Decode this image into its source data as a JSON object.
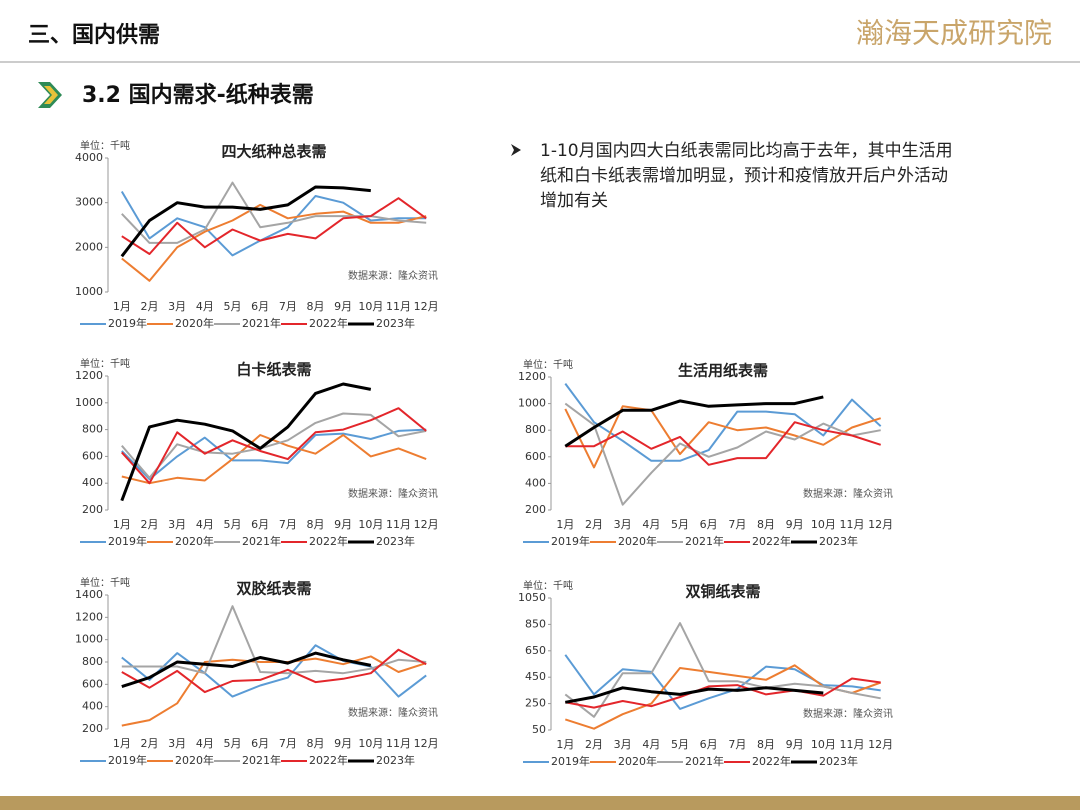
{
  "header": {
    "section": "三、国内供需",
    "logo": "瀚海天成研究院",
    "subtitle": "3.2 国内需求-纸种表需",
    "bullet": [
      "1-10月国内四大白纸表需同比均高于去年，其中生活用",
      "纸和白卡纸表需增加明显，预计和疫情放开后户外活动",
      "增加有关"
    ]
  },
  "chart_data": [
    {
      "type": "line",
      "title": "四大纸种总表需",
      "unit_label": "单位：千吨",
      "source": "数据来源：隆众资讯",
      "categories": [
        "1月",
        "2月",
        "3月",
        "4月",
        "5月",
        "6月",
        "7月",
        "8月",
        "9月",
        "10月",
        "11月",
        "12月"
      ],
      "ylim": [
        1000,
        4000
      ],
      "yticks": [
        1000,
        2000,
        3000,
        4000
      ],
      "series": [
        {
          "name": "2019年",
          "color": "#5b9bd5",
          "values": [
            3250,
            2200,
            2650,
            2450,
            1820,
            2150,
            2450,
            3150,
            3000,
            2600,
            2650,
            2650
          ]
        },
        {
          "name": "2020年",
          "color": "#ed7d31",
          "values": [
            1750,
            1250,
            2000,
            2350,
            2600,
            2950,
            2650,
            2750,
            2800,
            2550,
            2550,
            2700
          ]
        },
        {
          "name": "2021年",
          "color": "#a5a5a5",
          "values": [
            2750,
            2100,
            2100,
            2400,
            3450,
            2450,
            2550,
            2700,
            2700,
            2700,
            2600,
            2550
          ]
        },
        {
          "name": "2022年",
          "color": "#e3262b",
          "values": [
            2250,
            1850,
            2550,
            2000,
            2400,
            2150,
            2300,
            2200,
            2650,
            2700,
            3100,
            2650
          ]
        },
        {
          "name": "2023年",
          "color": "#000000",
          "values": [
            1800,
            2600,
            3000,
            2900,
            2900,
            2850,
            2950,
            3350,
            3330,
            3270,
            null,
            null
          ]
        }
      ]
    },
    {
      "type": "line",
      "title": "白卡纸表需",
      "unit_label": "单位：千吨",
      "source": "数据来源：隆众资讯",
      "categories": [
        "1月",
        "2月",
        "3月",
        "4月",
        "5月",
        "6月",
        "7月",
        "8月",
        "9月",
        "10月",
        "11月",
        "12月"
      ],
      "ylim": [
        200,
        1200
      ],
      "yticks": [
        200,
        400,
        600,
        800,
        1000,
        1200
      ],
      "series": [
        {
          "name": "2019年",
          "color": "#5b9bd5",
          "values": [
            640,
            430,
            600,
            740,
            570,
            570,
            550,
            760,
            770,
            730,
            790,
            800
          ]
        },
        {
          "name": "2020年",
          "color": "#ed7d31",
          "values": [
            450,
            400,
            440,
            420,
            580,
            760,
            680,
            620,
            760,
            600,
            660,
            580
          ]
        },
        {
          "name": "2021年",
          "color": "#a5a5a5",
          "values": [
            680,
            440,
            690,
            630,
            620,
            660,
            720,
            850,
            920,
            910,
            750,
            790
          ]
        },
        {
          "name": "2022年",
          "color": "#e3262b",
          "values": [
            630,
            400,
            780,
            620,
            720,
            640,
            580,
            780,
            800,
            870,
            960,
            790
          ]
        },
        {
          "name": "2023年",
          "color": "#000000",
          "values": [
            270,
            820,
            870,
            840,
            790,
            660,
            820,
            1070,
            1140,
            1100,
            null,
            null
          ]
        }
      ]
    },
    {
      "type": "line",
      "title": "生活用纸表需",
      "unit_label": "单位：千吨",
      "source": "数据来源：隆众资讯",
      "categories": [
        "1月",
        "2月",
        "3月",
        "4月",
        "5月",
        "6月",
        "7月",
        "8月",
        "9月",
        "10月",
        "11月",
        "12月"
      ],
      "ylim": [
        200,
        1200
      ],
      "yticks": [
        200,
        400,
        600,
        800,
        1000,
        1200
      ],
      "series": [
        {
          "name": "2019年",
          "color": "#5b9bd5",
          "values": [
            1150,
            860,
            720,
            570,
            570,
            650,
            940,
            940,
            920,
            760,
            1030,
            830
          ]
        },
        {
          "name": "2020年",
          "color": "#ed7d31",
          "values": [
            960,
            520,
            980,
            950,
            620,
            860,
            800,
            820,
            760,
            690,
            820,
            890
          ]
        },
        {
          "name": "2021年",
          "color": "#a5a5a5",
          "values": [
            1000,
            840,
            240,
            480,
            700,
            600,
            670,
            790,
            730,
            850,
            760,
            800
          ]
        },
        {
          "name": "2022年",
          "color": "#e3262b",
          "values": [
            680,
            680,
            790,
            660,
            750,
            540,
            590,
            590,
            860,
            800,
            760,
            690
          ]
        },
        {
          "name": "2023年",
          "color": "#000000",
          "values": [
            680,
            820,
            950,
            950,
            1020,
            980,
            990,
            1000,
            1000,
            1050,
            null,
            null
          ]
        }
      ]
    },
    {
      "type": "line",
      "title": "双胶纸表需",
      "unit_label": "单位：千吨",
      "source": "数据来源：隆众资讯",
      "categories": [
        "1月",
        "2月",
        "3月",
        "4月",
        "5月",
        "6月",
        "7月",
        "8月",
        "9月",
        "10月",
        "11月",
        "12月"
      ],
      "ylim": [
        200,
        1400
      ],
      "yticks": [
        200,
        400,
        600,
        800,
        1000,
        1200,
        1400
      ],
      "series": [
        {
          "name": "2019年",
          "color": "#5b9bd5",
          "values": [
            840,
            640,
            880,
            700,
            490,
            590,
            660,
            950,
            810,
            760,
            490,
            680
          ]
        },
        {
          "name": "2020年",
          "color": "#ed7d31",
          "values": [
            230,
            280,
            430,
            800,
            820,
            800,
            800,
            830,
            780,
            850,
            710,
            790
          ]
        },
        {
          "name": "2021年",
          "color": "#a5a5a5",
          "values": [
            760,
            760,
            760,
            700,
            1300,
            710,
            700,
            720,
            700,
            740,
            820,
            800
          ]
        },
        {
          "name": "2022年",
          "color": "#e3262b",
          "values": [
            710,
            570,
            720,
            530,
            630,
            640,
            730,
            620,
            650,
            700,
            910,
            780
          ]
        },
        {
          "name": "2023年",
          "color": "#000000",
          "values": [
            580,
            660,
            800,
            780,
            760,
            840,
            790,
            880,
            820,
            770,
            null,
            null
          ]
        }
      ]
    },
    {
      "type": "line",
      "title": "双铜纸表需",
      "unit_label": "单位：千吨",
      "source": "数据来源：隆众资讯",
      "categories": [
        "1月",
        "2月",
        "3月",
        "4月",
        "5月",
        "6月",
        "7月",
        "8月",
        "9月",
        "10月",
        "11月",
        "12月"
      ],
      "ylim": [
        50,
        1050
      ],
      "yticks": [
        50,
        250,
        450,
        650,
        850,
        1050
      ],
      "series": [
        {
          "name": "2019年",
          "color": "#5b9bd5",
          "values": [
            620,
            320,
            510,
            490,
            210,
            290,
            360,
            530,
            510,
            390,
            380,
            350
          ]
        },
        {
          "name": "2020年",
          "color": "#ed7d31",
          "values": [
            130,
            60,
            170,
            250,
            520,
            490,
            460,
            430,
            540,
            380,
            330,
            410
          ]
        },
        {
          "name": "2021年",
          "color": "#a5a5a5",
          "values": [
            320,
            150,
            480,
            480,
            860,
            420,
            420,
            370,
            400,
            380,
            330,
            290
          ]
        },
        {
          "name": "2022年",
          "color": "#e3262b",
          "values": [
            260,
            220,
            270,
            230,
            300,
            380,
            390,
            320,
            350,
            310,
            440,
            410
          ]
        },
        {
          "name": "2023年",
          "color": "#000000",
          "values": [
            260,
            300,
            370,
            340,
            320,
            360,
            350,
            370,
            350,
            330,
            null,
            null
          ]
        }
      ]
    }
  ]
}
